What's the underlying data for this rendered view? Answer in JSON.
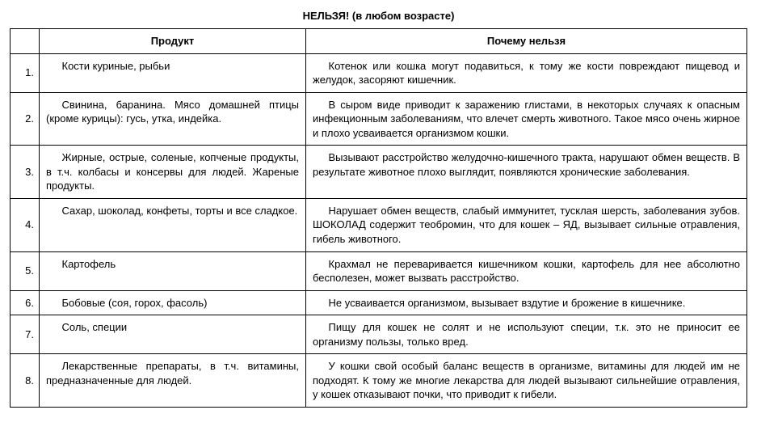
{
  "title": "НЕЛЬЗЯ! (в любом возрасте)",
  "columns": {
    "product": "Продукт",
    "reason": "Почему нельзя"
  },
  "rows": [
    {
      "n": "1.",
      "product": "Кости куриные, рыбьи",
      "reason": "Котенок или кошка могут подавиться, к тому же кости повреждают пищевод и желудок, засоряют кишечник."
    },
    {
      "n": "2.",
      "product": "Свинина, баранина. Мясо домашней птицы (кроме курицы): гусь, утка, индейка.",
      "reason": "В сыром виде приводит к заражению глистами, в некоторых случаях к опасным инфекционным заболеваниям, что влечет смерть животного. Такое мясо очень жирное и плохо усваивается организмом кошки."
    },
    {
      "n": "3.",
      "product": "Жирные, острые, соленые, копченые продукты, в т.ч. колбасы и консервы для людей. Жареные продукты.",
      "reason": "Вызывают расстройство желудочно-кишечного тракта, нарушают обмен веществ. В результате животное плохо выглядит, появляются хронические заболевания."
    },
    {
      "n": "4.",
      "product": "Сахар, шоколад, конфеты, торты и все сладкое.",
      "reason": "Нарушает обмен веществ, слабый иммунитет, тусклая шерсть, заболевания зубов. ШОКОЛАД содержит теобромин, что для кошек – ЯД, вызывает сильные отравления, гибель животного."
    },
    {
      "n": "5.",
      "product": "Картофель",
      "reason": "Крахмал не переваривается кишечником кошки, картофель для нее абсолютно бесполезен, может вызвать расстройство."
    },
    {
      "n": "6.",
      "product": "Бобовые (соя, горох, фасоль)",
      "reason": "Не усваивается организмом, вызывает вздутие и брожение в кишечнике."
    },
    {
      "n": "7.",
      "product": "Соль, специи",
      "reason": "Пищу для кошек не солят и не используют специи, т.к. это не приносит ее организму пользы, только вред."
    },
    {
      "n": "8.",
      "product": "Лекарственные препараты, в т.ч. витамины, предназначенные для людей.",
      "reason": "У кошки свой особый баланс веществ в организме, витамины для людей им не подходят. К тому же многие лекарства для людей вызывают сильнейшие отравления, у кошек отказывают почки, что приводит к гибели."
    }
  ]
}
